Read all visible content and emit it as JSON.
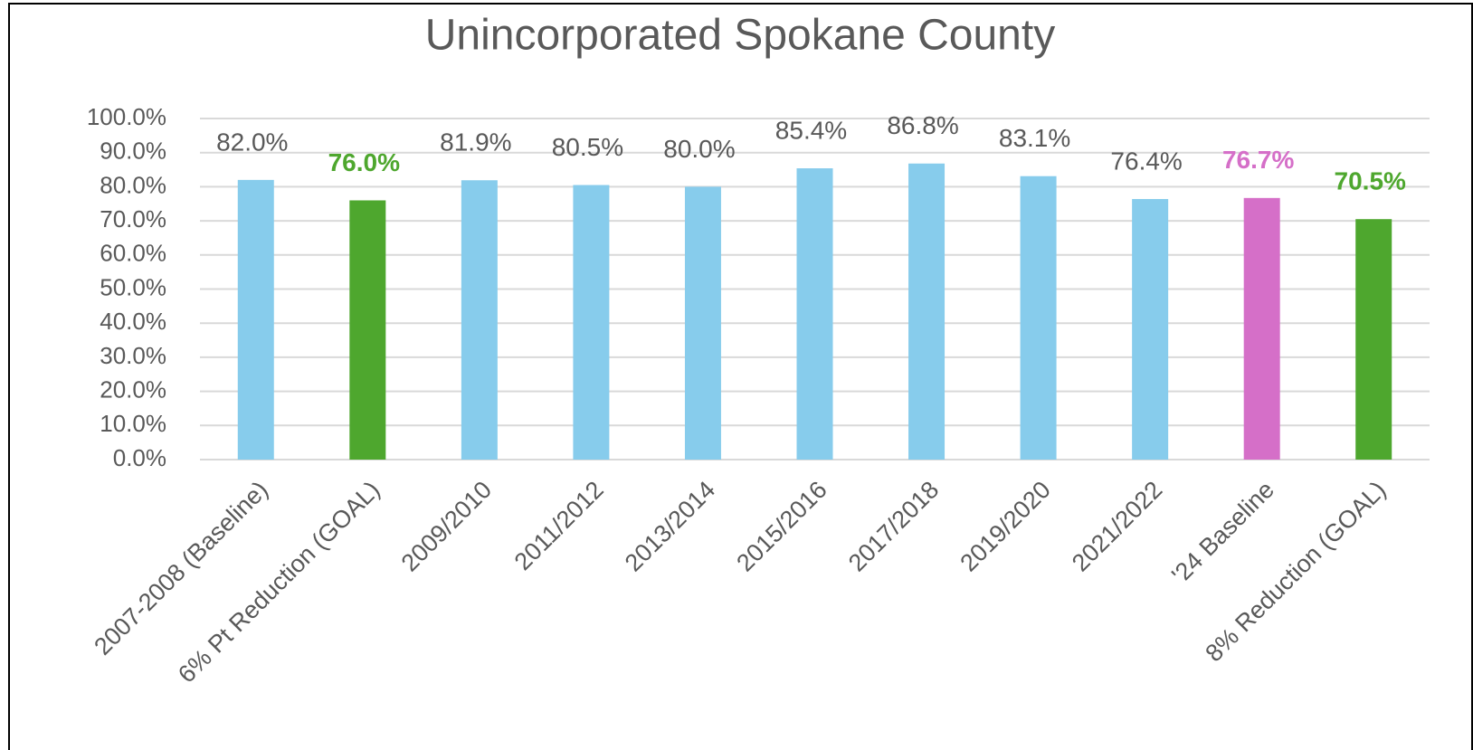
{
  "chart_data": {
    "type": "bar",
    "title": "Unincorporated Spokane County",
    "categories": [
      "2007-2008 (Baseline)",
      "6% Pt Reduction (GOAL)",
      "2009/2010",
      "2011/2012",
      "2013/2014",
      "2015/2016",
      "2017/2018",
      "2019/2020",
      "2021/2022",
      "'24 Baseline",
      "8% Reduction (GOAL)"
    ],
    "values": [
      82.0,
      76.0,
      81.9,
      80.5,
      80.0,
      85.4,
      86.8,
      83.1,
      76.4,
      76.7,
      70.5
    ],
    "value_labels": [
      "82.0%",
      "76.0%",
      "81.9%",
      "80.5%",
      "80.0%",
      "85.4%",
      "86.8%",
      "83.1%",
      "76.4%",
      "76.7%",
      "70.5%"
    ],
    "colors": [
      "#87ccec",
      "#4ea72e",
      "#87ccec",
      "#87ccec",
      "#87ccec",
      "#87ccec",
      "#87ccec",
      "#87ccec",
      "#87ccec",
      "#d56fc8",
      "#4ea72e"
    ],
    "label_colors": [
      "#595959",
      "#4ea72e",
      "#595959",
      "#595959",
      "#595959",
      "#595959",
      "#595959",
      "#595959",
      "#595959",
      "#d56fc8",
      "#4ea72e"
    ],
    "label_bold": [
      false,
      true,
      false,
      false,
      false,
      false,
      false,
      false,
      false,
      true,
      true
    ],
    "ylim": [
      0,
      100
    ],
    "yticks": [
      {
        "value": 0,
        "label": "0.0%"
      },
      {
        "value": 10,
        "label": "10.0%"
      },
      {
        "value": 20,
        "label": "20.0%"
      },
      {
        "value": 30,
        "label": "30.0%"
      },
      {
        "value": 40,
        "label": "40.0%"
      },
      {
        "value": 50,
        "label": "50.0%"
      },
      {
        "value": 60,
        "label": "60.0%"
      },
      {
        "value": 70,
        "label": "70.0%"
      },
      {
        "value": 80,
        "label": "80.0%"
      },
      {
        "value": 90,
        "label": "90.0%"
      },
      {
        "value": 100,
        "label": "100.0%"
      }
    ],
    "grid": true
  }
}
